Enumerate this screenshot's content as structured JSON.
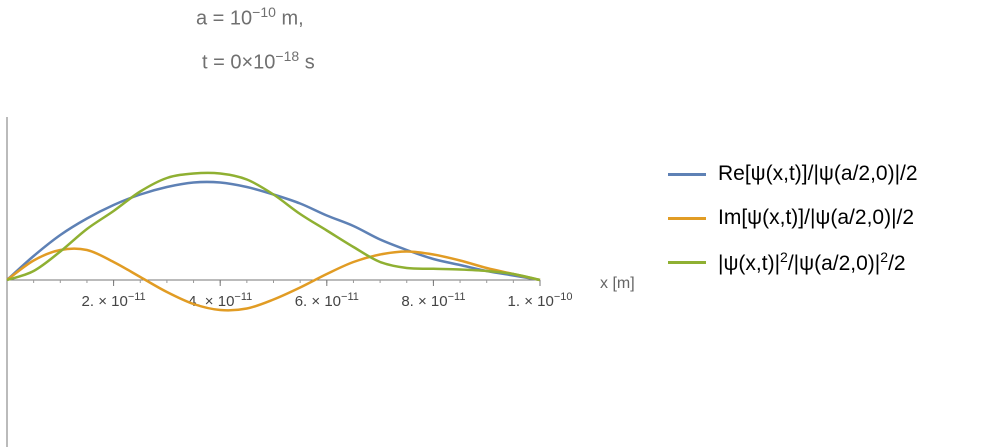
{
  "header": {
    "a_prefix": "a = 10",
    "a_exp": "−10",
    "a_suffix": " m,",
    "t_prefix": "t = 0×10",
    "t_exp": "−18",
    "t_suffix": " s"
  },
  "legend": {
    "re_label": "Re[ψ(x,t)]/|ψ(a/2,0)|/2",
    "im_label": "Im[ψ(x,t)]/|ψ(a/2,0)|/2",
    "prob_left": "|ψ(x,t)|",
    "prob_exp1": "2",
    "prob_mid": "/|ψ(a/2,0)|",
    "prob_exp2": "2",
    "prob_right": "/2"
  },
  "chart_data": {
    "type": "line",
    "title": "",
    "xlabel": "x [m]",
    "ylabel": "",
    "xlim": [
      0,
      1e-10
    ],
    "ylim": [
      -0.75,
      0.75
    ],
    "grid": false,
    "legend_position": "right",
    "x_ticks": [
      {
        "value": 2e-11,
        "mantissa": "2. × 10",
        "exp": "−11"
      },
      {
        "value": 4e-11,
        "mantissa": "4. × 10",
        "exp": "−11"
      },
      {
        "value": 6e-11,
        "mantissa": "6. × 10",
        "exp": "−11"
      },
      {
        "value": 8e-11,
        "mantissa": "8. × 10",
        "exp": "−11"
      },
      {
        "value": 1e-10,
        "mantissa": "1. × 10",
        "exp": "−10"
      }
    ],
    "x": [
      0,
      5e-12,
      1e-11,
      1.5e-11,
      2e-11,
      2.5e-11,
      3e-11,
      3.5e-11,
      4e-11,
      4.5e-11,
      5e-11,
      5.5e-11,
      6e-11,
      6.5e-11,
      7e-11,
      7.5e-11,
      8e-11,
      8.5e-11,
      9e-11,
      9.5e-11,
      1e-10
    ],
    "series": [
      {
        "name": "Re[ψ(x,t)]/|ψ(a/2,0)|/2",
        "color": "#5e81b5",
        "values": [
          0,
          0.16,
          0.3,
          0.41,
          0.5,
          0.57,
          0.62,
          0.65,
          0.65,
          0.62,
          0.57,
          0.51,
          0.43,
          0.36,
          0.27,
          0.2,
          0.14,
          0.1,
          0.06,
          0.03,
          0
        ]
      },
      {
        "name": "Im[ψ(x,t)]/|ψ(a/2,0)|/2",
        "color": "#e19c24",
        "values": [
          0,
          0.13,
          0.2,
          0.2,
          0.12,
          0.02,
          -0.08,
          -0.16,
          -0.2,
          -0.19,
          -0.13,
          -0.05,
          0.04,
          0.12,
          0.17,
          0.19,
          0.17,
          0.13,
          0.08,
          0.04,
          0
        ]
      },
      {
        "name": "|ψ(x,t)|²/|ψ(a/2,0)|²/2",
        "color": "#8fb032",
        "values": [
          0,
          0.06,
          0.19,
          0.34,
          0.46,
          0.59,
          0.68,
          0.71,
          0.71,
          0.67,
          0.57,
          0.44,
          0.33,
          0.22,
          0.12,
          0.08,
          0.075,
          0.07,
          0.06,
          0.04,
          0
        ]
      }
    ]
  }
}
